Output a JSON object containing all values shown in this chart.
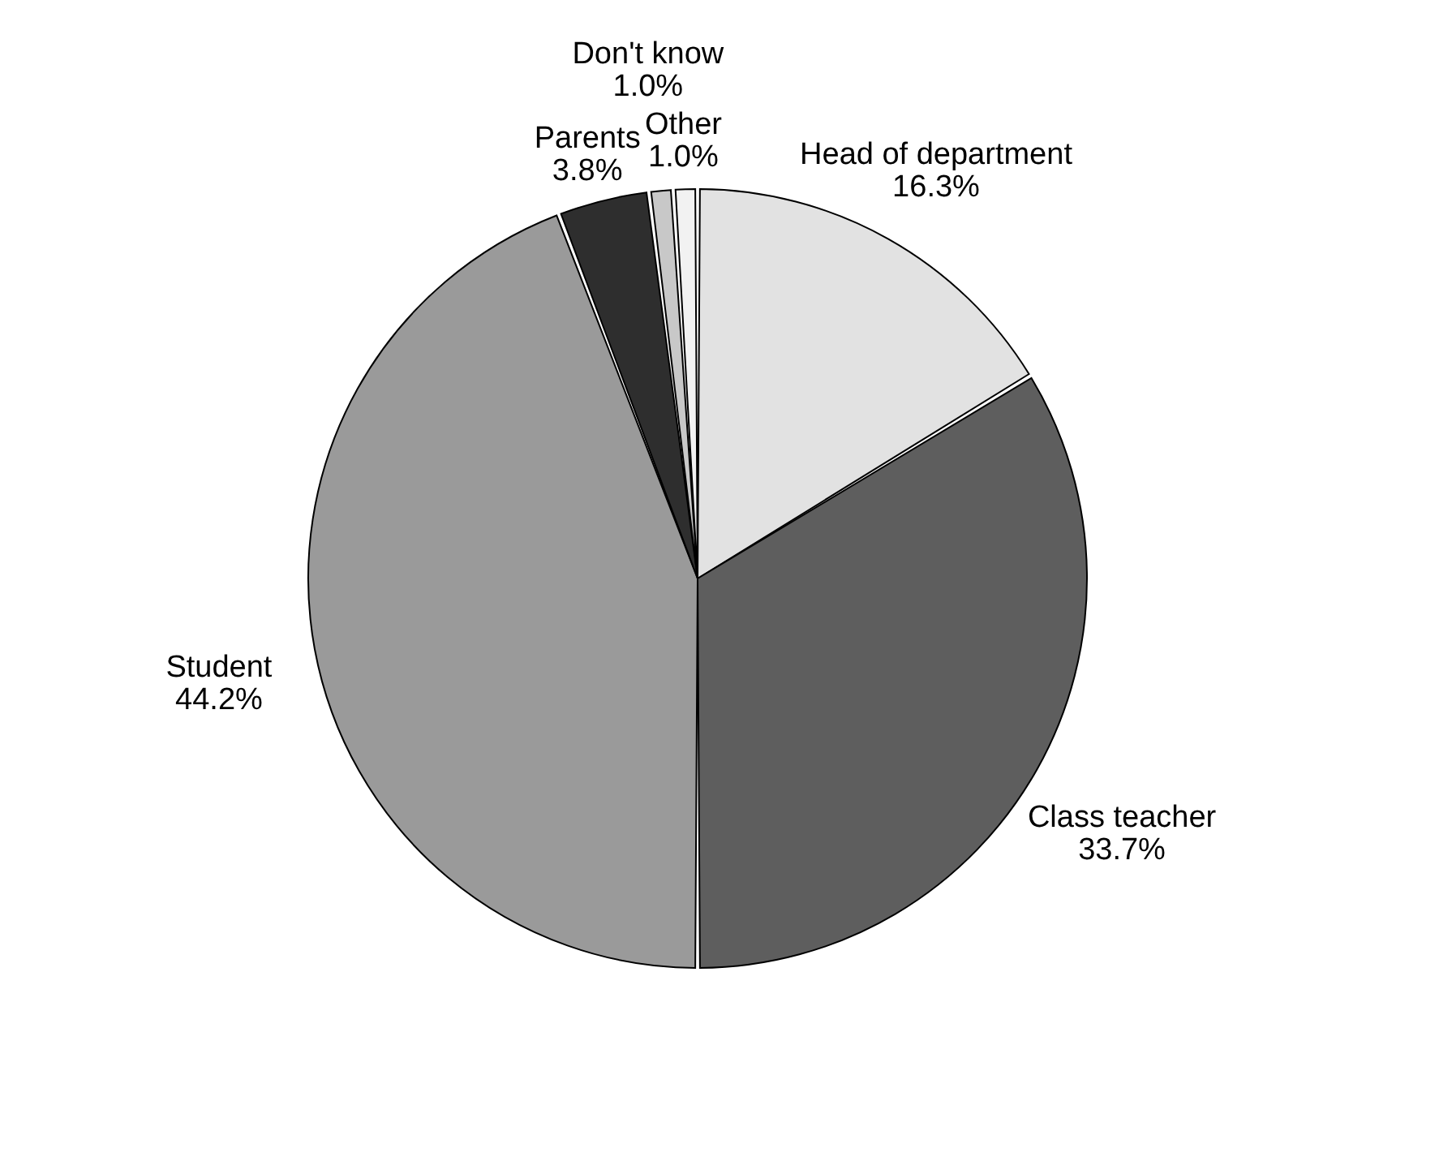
{
  "chart_data": {
    "type": "pie",
    "categories": [
      "Head of department",
      "Class teacher",
      "Student",
      "Parents",
      "Don't know",
      "Other"
    ],
    "values": [
      16.3,
      33.7,
      44.2,
      3.8,
      1.0,
      1.0
    ],
    "value_labels": [
      "16.3%",
      "33.7%",
      "44.2%",
      "3.8%",
      "1.0%",
      "1.0%"
    ],
    "colors": [
      "#e2e2e2",
      "#5e5e5e",
      "#9a9a9a",
      "#2e2e2e",
      "#c8c8c8",
      "#f2f2f2"
    ]
  }
}
